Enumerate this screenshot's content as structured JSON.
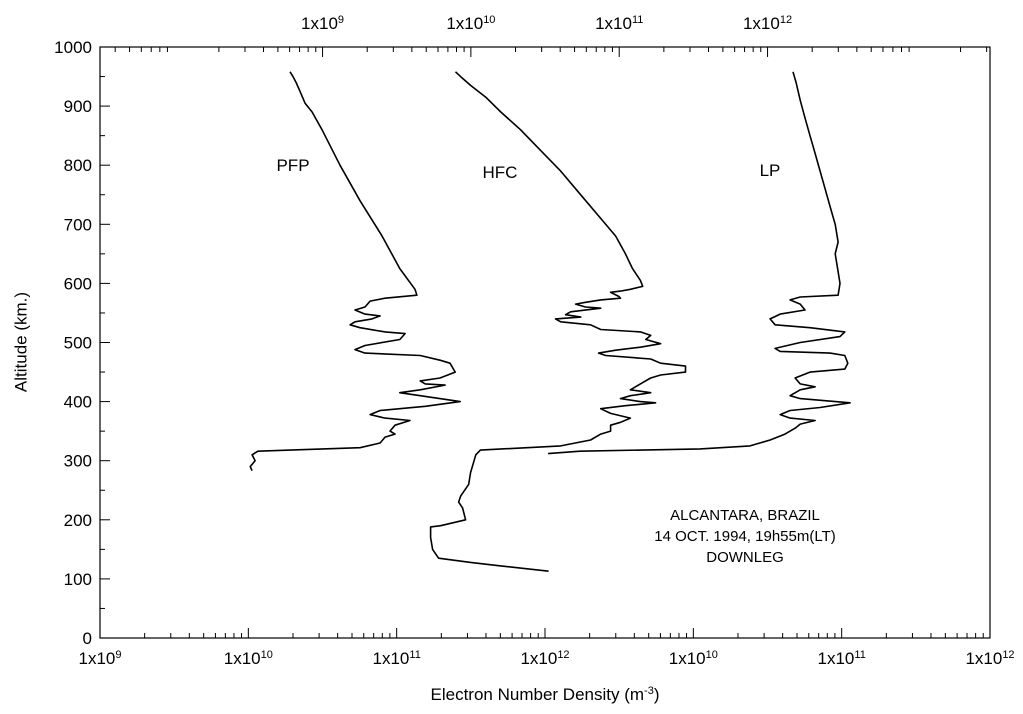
{
  "chart_data": {
    "type": "line",
    "xscale": "log",
    "ylabel": "Altitude (km.)",
    "xlabel": [
      "Electron Number Density (m",
      "-3",
      ")"
    ],
    "ylim": [
      0,
      1000
    ],
    "yticks": [
      0,
      100,
      200,
      300,
      400,
      500,
      600,
      700,
      800,
      900,
      1000
    ],
    "xlim": [
      1000000000.0,
      1000000000000.0
    ],
    "xticks": [
      {
        "value": 1000000000.0,
        "label": "1x10",
        "exponent": "9"
      },
      {
        "value": 10000000000.0,
        "label": "1x10",
        "exponent": "10"
      },
      {
        "value": 100000000000.0,
        "label": "1x10",
        "exponent": "11"
      },
      {
        "value": 1000000000000.0,
        "label": "1x10",
        "exponent": "12"
      }
    ],
    "x2lim": [
      1000000000.0,
      1000000000000.0
    ],
    "x2ticks": [
      {
        "value": 10000000000.0,
        "label": "1x10",
        "exponent": "10"
      },
      {
        "value": 100000000000.0,
        "label": "1x10",
        "exponent": "11"
      },
      {
        "value": 1000000000000.0,
        "label": "1x10",
        "exponent": "12"
      }
    ],
    "x3lim": [
      31600000.0,
      31600000000000.0
    ],
    "x3ticks": [
      {
        "value": 1000000000.0,
        "label": "1x10",
        "exponent": "9"
      },
      {
        "value": 10000000000.0,
        "label": "1x10",
        "exponent": "10"
      },
      {
        "value": 100000000000.0,
        "label": "1x10",
        "exponent": "11"
      },
      {
        "value": 1000000000000.0,
        "label": "1x10",
        "exponent": "12"
      }
    ],
    "annotation": [
      "ALCANTARA, BRAZIL",
      "14 OCT. 1994, 19h55m(LT)",
      "DOWNLEG"
    ],
    "series": [
      {
        "name": "PFP",
        "color": "#000000",
        "axis": "x",
        "x": [
          19100000000.0,
          20000000000.0,
          21000000000.0,
          22300000000.0,
          24100000000.0,
          26900000000.0,
          31400000000.0,
          41500000000.0,
          56600000000.0,
          79800000000.0,
          105000000000.0,
          133000000000.0,
          137000000000.0,
          83600000000.0,
          66200000000.0,
          61200000000.0,
          52400000000.0,
          61200000000.0,
          77300000000.0,
          68200000000.0,
          52400000000.0,
          48500000000.0,
          56600000000.0,
          83600000000.0,
          114000000000.0,
          105000000000.0,
          61200000000.0,
          52400000000.0,
          61200000000.0,
          144000000000.0,
          196000000000.0,
          229000000000.0,
          248000000000.0,
          196000000000.0,
          144000000000.0,
          156000000000.0,
          212000000000.0,
          144000000000.0,
          105000000000.0,
          144000000000.0,
          268000000000.0,
          156000000000.0,
          77300000000.0,
          66200000000.0,
          83600000000.0,
          123000000000.0,
          97500000000.0,
          90200000000.0,
          97500000000.0,
          83600000000.0,
          77300000000.0,
          56600000000.0,
          19100000000.0,
          11600000000.0,
          10600000000.0,
          11100000000.0,
          10300000000.0,
          10600000000.0
        ],
        "values": [
          958,
          950,
          940,
          925,
          905,
          890,
          860,
          800,
          740,
          680,
          625,
          590,
          580,
          575,
          570,
          560,
          555,
          548,
          545,
          540,
          535,
          530,
          525,
          518,
          515,
          505,
          495,
          488,
          482,
          478,
          470,
          465,
          450,
          440,
          435,
          430,
          428,
          420,
          415,
          410,
          400,
          392,
          385,
          378,
          372,
          368,
          360,
          350,
          345,
          340,
          330,
          322,
          318,
          316,
          310,
          300,
          290,
          283
        ]
      },
      {
        "name": "HFC",
        "color": "#000000",
        "axis": "x3",
        "x": [
          7880000000.0,
          8530000000.0,
          9960000000.0,
          12600000000.0,
          15900000000.0,
          21600000000.0,
          29500000000.0,
          40300000000.0,
          55000000000.0,
          75000000000.0,
          94700000000.0,
          110000000000.0,
          123000000000.0,
          139000000000.0,
          144000000000.0,
          119000000000.0,
          102000000000.0,
          87500000000.0,
          99200000000.0,
          102000000000.0,
          75000000000.0,
          59300000000.0,
          50800000000.0,
          59300000000.0,
          75000000000.0,
          47000000000.0,
          43500000000.0,
          55000000000.0,
          37200000000.0,
          40300000000.0,
          64100000000.0,
          75000000000.0,
          139000000000.0,
          163000000000.0,
          151000000000.0,
          190000000000.0,
          139000000000.0,
          94700000000.0,
          72600000000.0,
          81000000000.0,
          163000000000.0,
          190000000000.0,
          280000000000.0,
          280000000000.0,
          190000000000.0,
          163000000000.0,
          139000000000.0,
          119000000000.0,
          163000000000.0,
          119000000000.0,
          102000000000.0,
          139000000000.0,
          176000000000.0,
          110000000000.0,
          75000000000.0,
          87500000000.0,
          119000000000.0,
          102000000000.0,
          87500000000.0,
          87500000000.0,
          75000000000.0,
          64100000000.0,
          40300000000.0,
          11600000000.0,
          10800000000.0,
          9960000000.0,
          9660000000.0,
          8530000000.0,
          8270000000.0,
          8800000000.0,
          9210000000.0,
          6250000000.0,
          5350000000.0,
          5350000000.0,
          5520000000.0,
          6060000000.0,
          9960000000.0,
          15900000000.0,
          33400000000.0
        ],
        "values": [
          958,
          950,
          935,
          915,
          890,
          860,
          825,
          790,
          750,
          710,
          680,
          650,
          625,
          605,
          595,
          590,
          587,
          585,
          578,
          575,
          572,
          568,
          565,
          560,
          558,
          552,
          547,
          543,
          540,
          535,
          530,
          522,
          518,
          512,
          505,
          498,
          492,
          487,
          482,
          478,
          472,
          465,
          460,
          450,
          445,
          440,
          430,
          420,
          415,
          410,
          405,
          400,
          398,
          393,
          388,
          380,
          372,
          365,
          360,
          350,
          345,
          335,
          325,
          318,
          310,
          280,
          260,
          240,
          230,
          220,
          200,
          190,
          188,
          170,
          150,
          135,
          128,
          122,
          113
        ]
      },
      {
        "name": "LP",
        "color": "#000000",
        "axis": "x2",
        "x": [
          47000000000.0,
          49300000000.0,
          52500000000.0,
          56600000000.0,
          61200000000.0,
          66200000000.0,
          71500000000.0,
          77300000000.0,
          83600000000.0,
          90400000000.0,
          94600000000.0,
          90400000000.0,
          94600000000.0,
          97500000000.0,
          94600000000.0,
          52500000000.0,
          44900000000.0,
          52500000000.0,
          56600000000.0,
          38500000000.0,
          32900000000.0,
          35600000000.0,
          61200000000.0,
          105000000000.0,
          97500000000.0,
          52500000000.0,
          35600000000.0,
          38500000000.0,
          83600000000.0,
          105000000000.0,
          110000000000.0,
          105000000000.0,
          61200000000.0,
          48500000000.0,
          52500000000.0,
          66200000000.0,
          52500000000.0,
          44900000000.0,
          52500000000.0,
          114000000000.0,
          71500000000.0,
          44900000000.0,
          38500000000.0,
          44900000000.0,
          66200000000.0,
          52500000000.0,
          48500000000.0,
          41500000000.0,
          32900000000.0,
          24100000000.0,
          11100000000.0,
          1720000000.0,
          1050000000.0
        ],
        "values": [
          958,
          940,
          910,
          880,
          850,
          820,
          790,
          760,
          730,
          700,
          670,
          650,
          620,
          600,
          580,
          577,
          572,
          565,
          555,
          548,
          540,
          530,
          525,
          518,
          510,
          500,
          490,
          485,
          482,
          478,
          465,
          455,
          450,
          440,
          430,
          425,
          420,
          410,
          405,
          398,
          390,
          385,
          378,
          372,
          368,
          362,
          355,
          345,
          335,
          325,
          320,
          316,
          312
        ]
      }
    ]
  }
}
